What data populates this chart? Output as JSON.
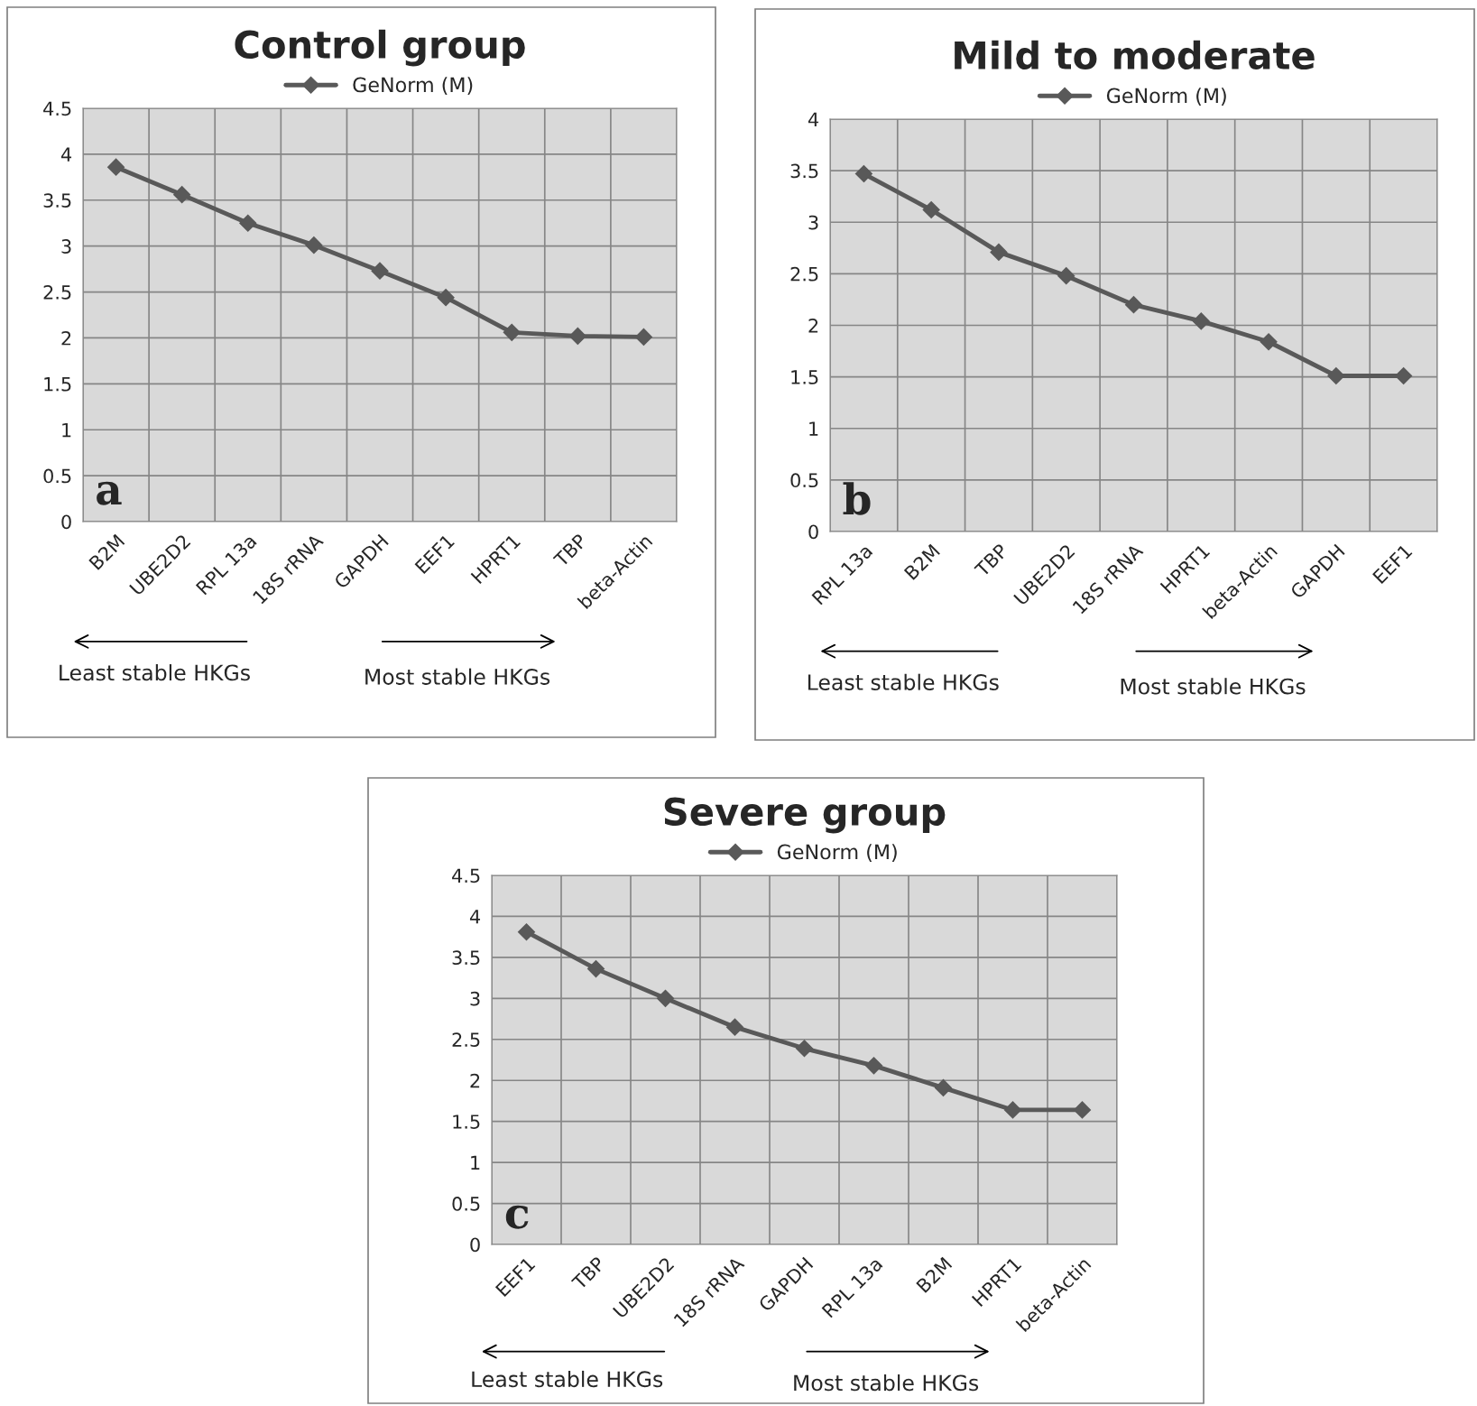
{
  "chart_data": [
    {
      "type": "line",
      "title": "Control group",
      "categories": [
        "B2M",
        "UBE2D2",
        "RPL 13a",
        "18S rRNA",
        "GAPDH",
        "EEF1",
        "HPRT1",
        "TBP",
        "beta-Actin"
      ],
      "series": [
        {
          "name": "GeNorm (M)",
          "color": "#595959",
          "values": [
            3.86,
            3.56,
            3.25,
            3.01,
            2.73,
            2.44,
            2.06,
            2.02,
            2.01
          ]
        }
      ],
      "ylim": [
        0,
        4.5
      ],
      "yticks": [
        0,
        0.5,
        1,
        1.5,
        2,
        2.5,
        3,
        3.5,
        4,
        4.5
      ],
      "grid": true,
      "legend": "top",
      "marker": "diamond",
      "line_style": "solid",
      "annotations": [
        "a",
        "Least stable HKGs",
        "Most stable HKGs"
      ]
    },
    {
      "type": "line",
      "title": "Mild to moderate",
      "categories": [
        "RPL 13a",
        "B2M",
        "TBP",
        "UBE2D2",
        "18S rRNA",
        "HPRT1",
        "beta-Actin",
        "GAPDH",
        "EEF1"
      ],
      "series": [
        {
          "name": "GeNorm (M)",
          "color": "#595959",
          "values": [
            3.47,
            3.12,
            2.71,
            2.48,
            2.2,
            2.04,
            1.84,
            1.51,
            1.51
          ]
        }
      ],
      "ylim": [
        0,
        4
      ],
      "yticks": [
        0,
        0.5,
        1,
        1.5,
        2,
        2.5,
        3,
        3.5,
        4
      ],
      "grid": true,
      "legend": "top",
      "marker": "diamond",
      "line_style": "solid",
      "annotations": [
        "b",
        "Least stable HKGs",
        "Most stable HKGs"
      ]
    },
    {
      "type": "line",
      "title": "Severe group",
      "categories": [
        "EEF1",
        "TBP",
        "UBE2D2",
        "18S rRNA",
        "GAPDH",
        "RPL 13a",
        "B2M",
        "HPRT1",
        "beta-Actin"
      ],
      "series": [
        {
          "name": "GeNorm (M)",
          "color": "#595959",
          "values": [
            3.81,
            3.36,
            3.0,
            2.65,
            2.39,
            2.18,
            1.91,
            1.64,
            1.64
          ]
        }
      ],
      "ylim": [
        0,
        4.5
      ],
      "yticks": [
        0,
        0.5,
        1,
        1.5,
        2,
        2.5,
        3,
        3.5,
        4,
        4.5
      ],
      "grid": true,
      "legend": "top",
      "marker": "diamond",
      "line_style": "solid",
      "annotations": [
        "c",
        "Least stable HKGs",
        "Most stable HKGs"
      ]
    }
  ]
}
